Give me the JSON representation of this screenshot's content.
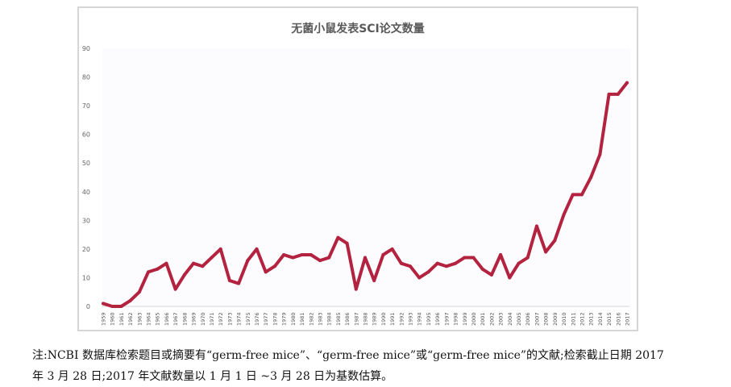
{
  "chart_data": {
    "type": "line",
    "title": "无菌小鼠发表SCI论文数量",
    "xlabel": "",
    "ylabel": "",
    "ylim": [
      0,
      90
    ],
    "yticks": [
      0,
      10,
      20,
      30,
      40,
      50,
      60,
      70,
      80,
      90
    ],
    "grid": false,
    "legend": "none",
    "line_color": "#b3233f",
    "x": [
      "1959",
      "1960",
      "1961",
      "1962",
      "1963",
      "1964",
      "1965",
      "1966",
      "1967",
      "1968",
      "1969",
      "1970",
      "1971",
      "1972",
      "1973",
      "1974",
      "1975",
      "1976",
      "1977",
      "1978",
      "1979",
      "1980",
      "1981",
      "1982",
      "1983",
      "1984",
      "1985",
      "1986",
      "1987",
      "1988",
      "1989",
      "1990",
      "1991",
      "1992",
      "1993",
      "1994",
      "1995",
      "1996",
      "1997",
      "1998",
      "1999",
      "2000",
      "2001",
      "2002",
      "2003",
      "2004",
      "2005",
      "2006",
      "2007",
      "2008",
      "2009",
      "2010",
      "2011",
      "2012",
      "2013",
      "2014",
      "2015",
      "2016",
      "2017"
    ],
    "values": [
      1,
      0,
      0,
      2,
      5,
      12,
      13,
      15,
      6,
      11,
      15,
      14,
      17,
      20,
      9,
      8,
      16,
      20,
      12,
      14,
      18,
      17,
      18,
      18,
      16,
      17,
      24,
      22,
      6,
      17,
      9,
      18,
      20,
      15,
      14,
      10,
      12,
      15,
      14,
      15,
      17,
      17,
      13,
      11,
      18,
      10,
      15,
      17,
      28,
      19,
      23,
      32,
      39,
      39,
      45,
      53,
      74,
      74,
      78
    ]
  },
  "caption": {
    "line1": "注:NCBI 数据库检索题目或摘要有“germ-free mice”、“germ-free mice”或“germ-free mice”的文献;检索截止日期 2017",
    "line2": "年 3 月 28 日;2017 年文献数量以 1 月 1 日 ~3 月 28 日为基数估算。"
  }
}
